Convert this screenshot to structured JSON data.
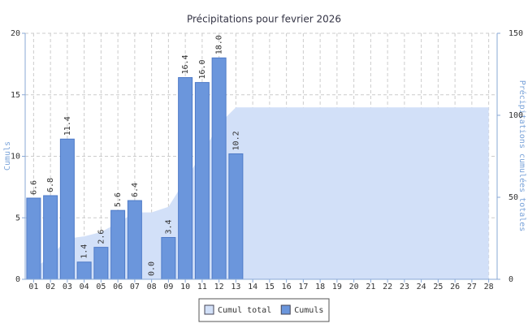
{
  "chart_data": {
    "type": "bar",
    "title": "Précipitations pour fevrier 2026",
    "y_label": "Cumuls",
    "y2_label": "Précipitations cumulées totales",
    "categories": [
      "01",
      "02",
      "03",
      "04",
      "05",
      "06",
      "07",
      "08",
      "09",
      "10",
      "11",
      "12",
      "13",
      "14",
      "15",
      "16",
      "17",
      "18",
      "19",
      "20",
      "21",
      "22",
      "23",
      "24",
      "25",
      "26",
      "27",
      "28"
    ],
    "series": [
      {
        "name": "Cumul total",
        "color": "#d2e0f8",
        "axis": "y2",
        "type": "area",
        "values": [
          6.6,
          13.4,
          24.8,
          26.2,
          28.8,
          34.4,
          40.8,
          40.8,
          44.2,
          60.6,
          76.6,
          94.6,
          104.8,
          104.8,
          104.8,
          104.8,
          104.8,
          104.8,
          104.8,
          104.8,
          104.8,
          104.8,
          104.8,
          104.8,
          104.8,
          104.8,
          104.8,
          104.8
        ]
      },
      {
        "name": "Cumuls",
        "color": "#6b96dc",
        "type": "bar",
        "values": [
          6.6,
          6.8,
          11.4,
          1.4,
          2.6,
          5.6,
          6.4,
          0,
          3.4,
          16.4,
          16,
          18,
          10.2,
          null,
          null,
          null,
          null,
          null,
          null,
          null,
          null,
          null,
          null,
          null,
          null,
          null,
          null,
          null
        ],
        "value_labels": [
          "6.6",
          "6.8",
          "11.4",
          "1.4",
          "2.6",
          "5.6",
          "6.4",
          "0.0",
          "3.4",
          "16.4",
          "16.0",
          "18.0",
          "10.2",
          null,
          null,
          null,
          null,
          null,
          null,
          null,
          null,
          null,
          null,
          null,
          null,
          null,
          null,
          null
        ]
      }
    ],
    "ylim": [
      0,
      20
    ],
    "yticks": [
      0,
      5,
      10,
      15,
      20
    ],
    "y2lim": [
      0,
      150
    ],
    "y2ticks": [
      0,
      50,
      100,
      150
    ],
    "grid": true,
    "legend": "bottom"
  }
}
